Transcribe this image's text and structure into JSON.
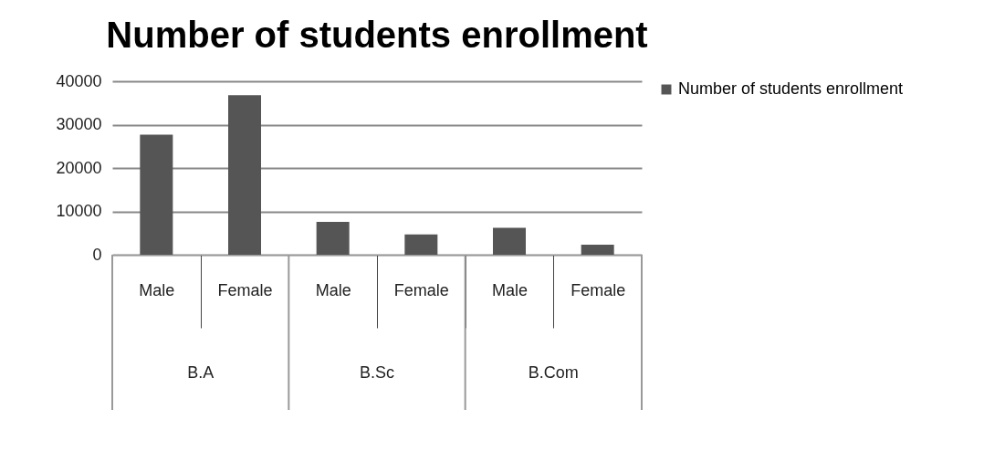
{
  "chart_data": {
    "type": "bar",
    "title": "Number of students enrollment",
    "categories": [
      "Male",
      "Female",
      "Male",
      "Female",
      "Male",
      "Female"
    ],
    "series": [
      {
        "name": "Number of students enrollment",
        "color": "#555555",
        "values": [
          27700,
          36800,
          7600,
          4700,
          6200,
          2300
        ]
      }
    ],
    "annotations": [
      "B.A",
      "B.Sc",
      "B.Com"
    ],
    "ylim": [
      0,
      40000
    ],
    "yticks": [
      0,
      10000,
      20000,
      30000,
      40000
    ],
    "grid": "y",
    "legend": "right"
  }
}
